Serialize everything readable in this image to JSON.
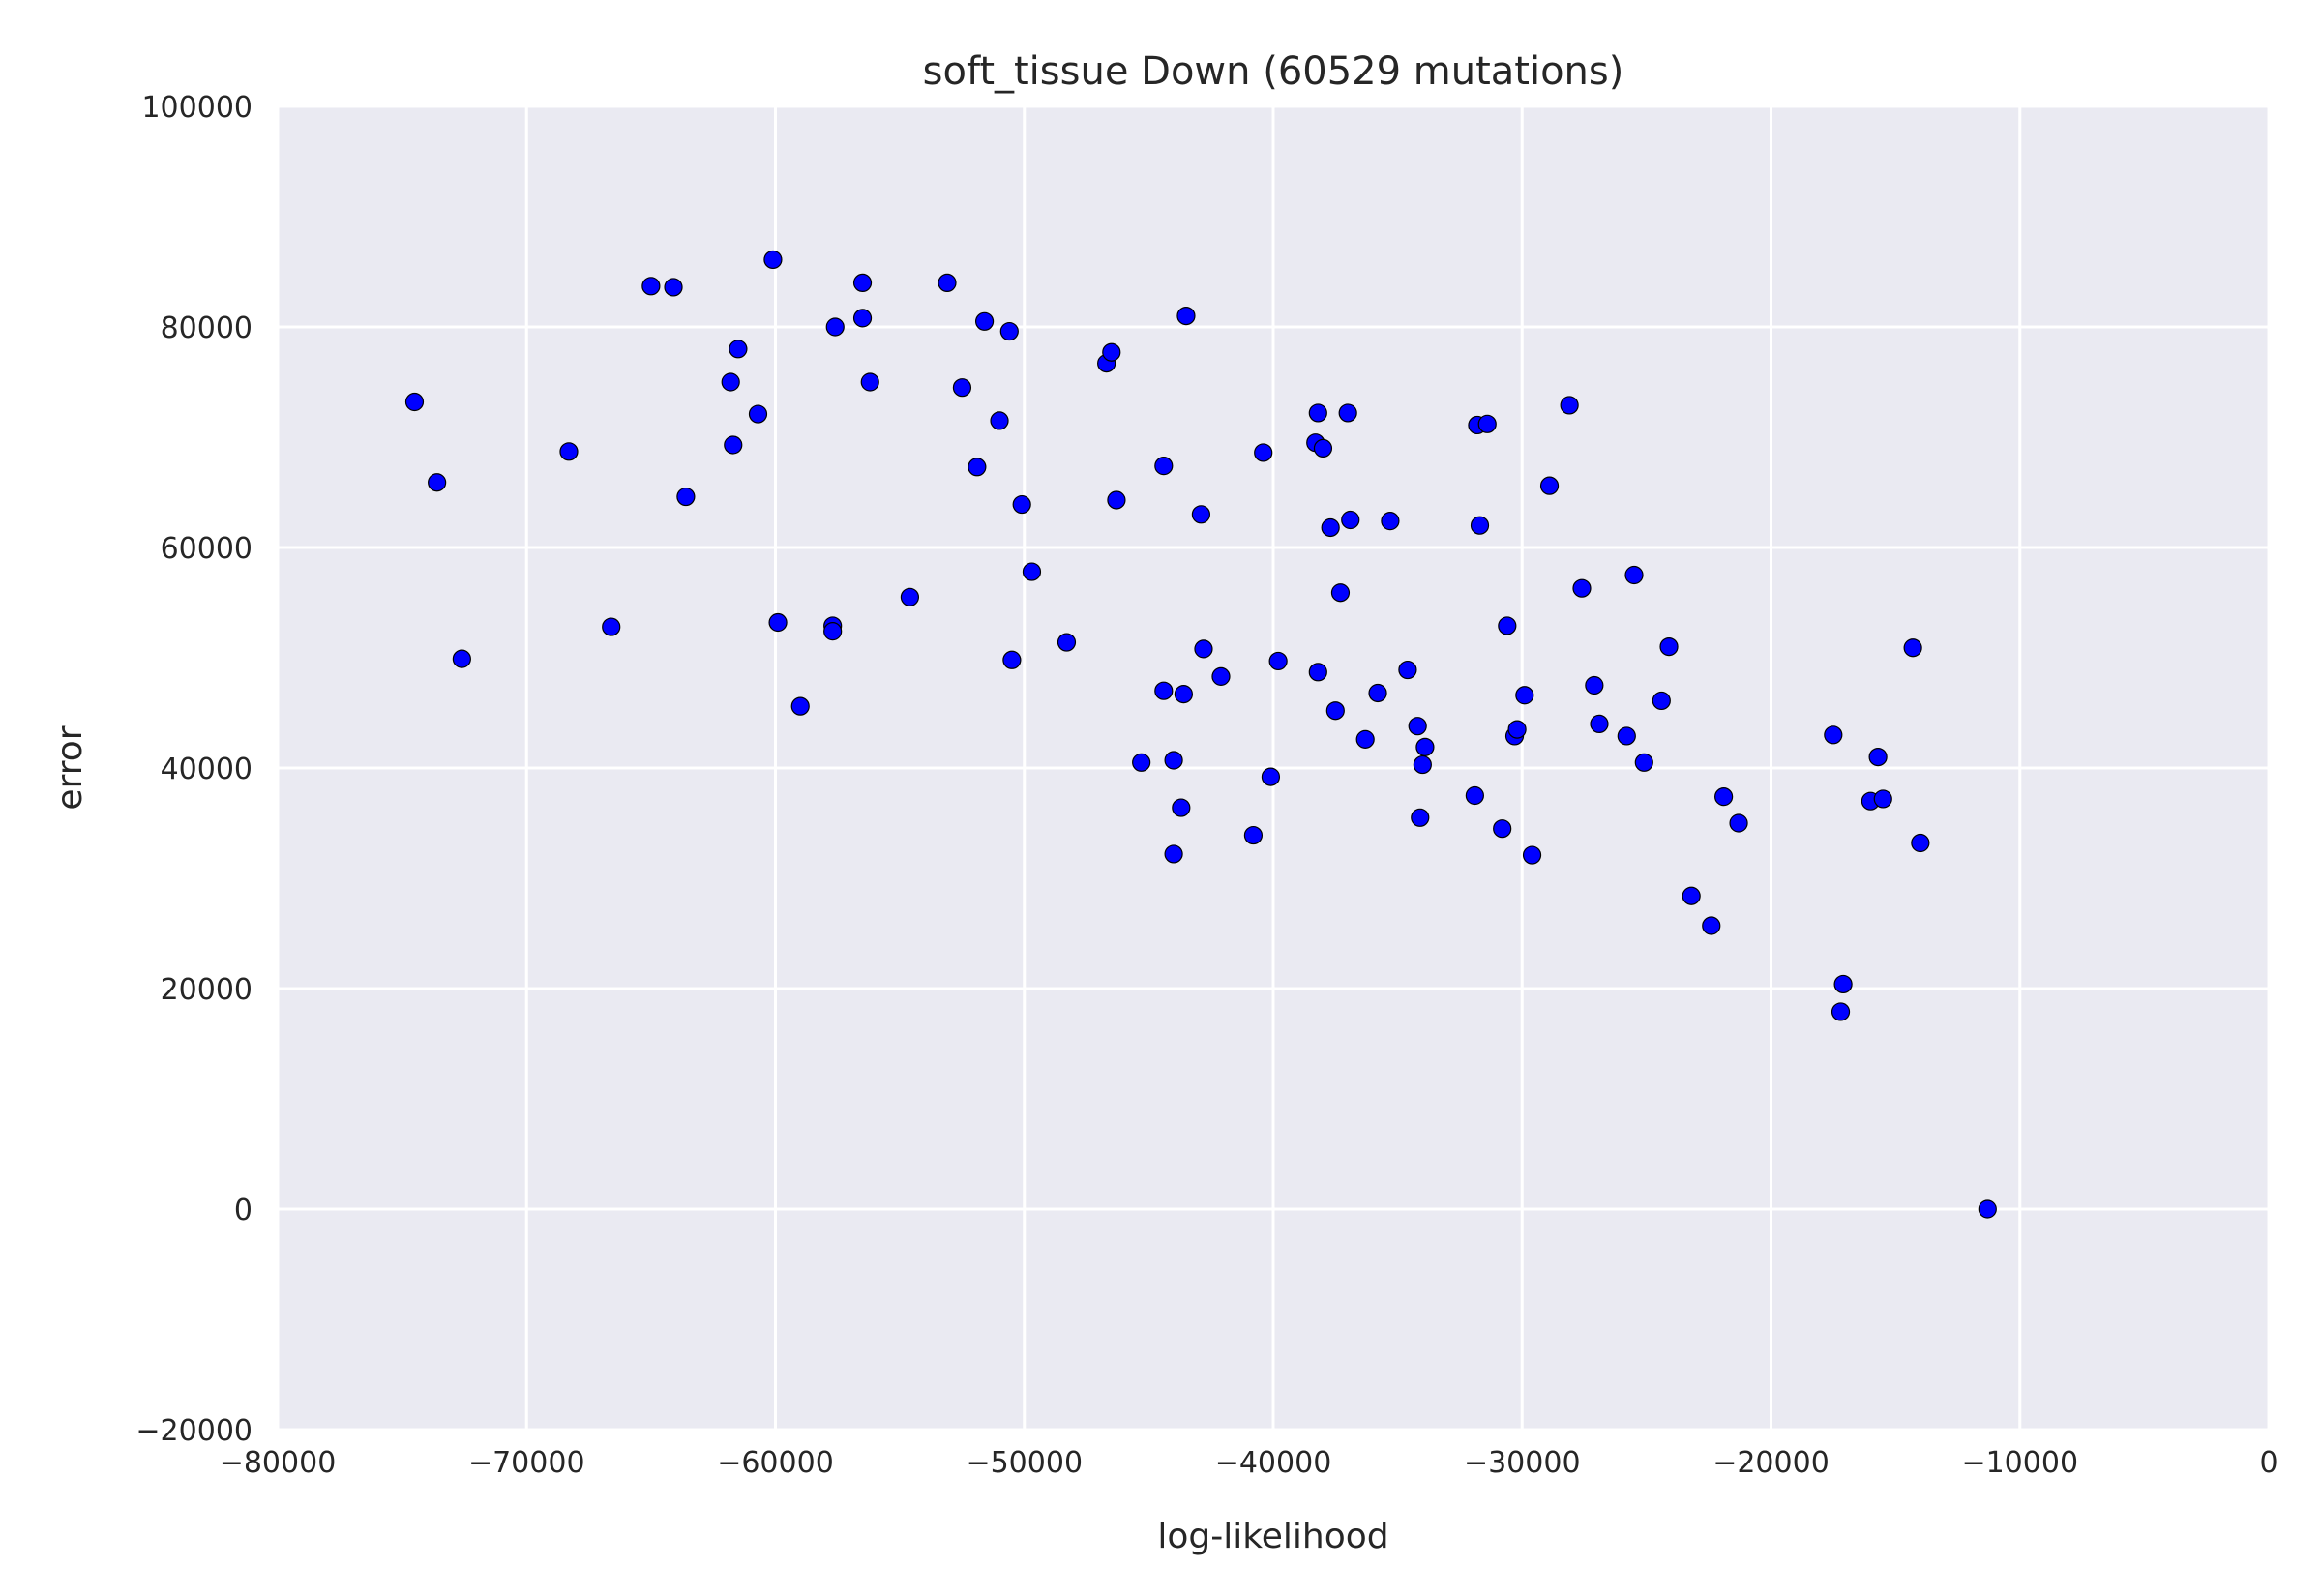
{
  "chart_data": {
    "type": "scatter",
    "title": "soft_tissue Down (60529 mutations)",
    "xlabel": "log-likelihood",
    "ylabel": "error",
    "xlim": [
      -80000,
      0
    ],
    "ylim": [
      -20000,
      100000
    ],
    "xticks": [
      -80000,
      -70000,
      -60000,
      -50000,
      -40000,
      -30000,
      -20000,
      -10000,
      0
    ],
    "yticks": [
      -20000,
      0,
      20000,
      40000,
      60000,
      80000,
      100000
    ],
    "xtick_labels": [
      "−80000",
      "−70000",
      "−60000",
      "−50000",
      "−40000",
      "−30000",
      "−20000",
      "−10000",
      "0"
    ],
    "ytick_labels": [
      "−20000",
      "0",
      "20000",
      "40000",
      "60000",
      "80000",
      "100000"
    ],
    "grid": true,
    "colors": {
      "background": "#eaeaf2",
      "grid": "#ffffff",
      "point_fill": "#0000ff",
      "point_edge": "#000000"
    },
    "points": [
      [
        -74500,
        73200
      ],
      [
        -73600,
        65900
      ],
      [
        -72600,
        49900
      ],
      [
        -68300,
        68700
      ],
      [
        -66600,
        52800
      ],
      [
        -65000,
        83700
      ],
      [
        -64100,
        83600
      ],
      [
        -63600,
        64600
      ],
      [
        -61800,
        75000
      ],
      [
        -61700,
        69300
      ],
      [
        -61500,
        78000
      ],
      [
        -60700,
        72100
      ],
      [
        -60100,
        86100
      ],
      [
        -59900,
        53200
      ],
      [
        -59000,
        45600
      ],
      [
        -57700,
        52900
      ],
      [
        -57700,
        52400
      ],
      [
        -57600,
        80000
      ],
      [
        -56500,
        80800
      ],
      [
        -56500,
        84000
      ],
      [
        -56200,
        75000
      ],
      [
        -54600,
        55500
      ],
      [
        -53100,
        84000
      ],
      [
        -52500,
        74500
      ],
      [
        -51900,
        67300
      ],
      [
        -51600,
        80500
      ],
      [
        -51000,
        71500
      ],
      [
        -50600,
        79600
      ],
      [
        -50500,
        49800
      ],
      [
        -50100,
        63900
      ],
      [
        -49700,
        57800
      ],
      [
        -48300,
        51400
      ],
      [
        -46700,
        76700
      ],
      [
        -46500,
        77700
      ],
      [
        -46300,
        64300
      ],
      [
        -45300,
        40500
      ],
      [
        -44400,
        67400
      ],
      [
        -44400,
        47000
      ],
      [
        -44000,
        32200
      ],
      [
        -44000,
        40700
      ],
      [
        -43700,
        36400
      ],
      [
        -43600,
        46700
      ],
      [
        -43500,
        81000
      ],
      [
        -42900,
        63000
      ],
      [
        -42800,
        50800
      ],
      [
        -42100,
        48300
      ],
      [
        -40800,
        33900
      ],
      [
        -40400,
        68600
      ],
      [
        -40100,
        39200
      ],
      [
        -39800,
        49700
      ],
      [
        -38300,
        69500
      ],
      [
        -38200,
        72200
      ],
      [
        -38200,
        48700
      ],
      [
        -38000,
        69000
      ],
      [
        -37700,
        61800
      ],
      [
        -37500,
        45200
      ],
      [
        -37300,
        55900
      ],
      [
        -37000,
        72200
      ],
      [
        -36900,
        62500
      ],
      [
        -36300,
        42600
      ],
      [
        -35800,
        46800
      ],
      [
        -35300,
        62400
      ],
      [
        -34600,
        48900
      ],
      [
        -34200,
        43800
      ],
      [
        -34100,
        35500
      ],
      [
        -34000,
        40300
      ],
      [
        -33900,
        41900
      ],
      [
        -31900,
        37500
      ],
      [
        -31800,
        71100
      ],
      [
        -31700,
        62000
      ],
      [
        -31400,
        71200
      ],
      [
        -30800,
        34500
      ],
      [
        -30600,
        52900
      ],
      [
        -30300,
        42900
      ],
      [
        -30200,
        43500
      ],
      [
        -29900,
        46600
      ],
      [
        -29600,
        32100
      ],
      [
        -28900,
        65600
      ],
      [
        -28100,
        72900
      ],
      [
        -27600,
        56300
      ],
      [
        -27100,
        47500
      ],
      [
        -26900,
        44000
      ],
      [
        -25800,
        42900
      ],
      [
        -25500,
        57500
      ],
      [
        -25100,
        40500
      ],
      [
        -24400,
        46100
      ],
      [
        -24100,
        51000
      ],
      [
        -23200,
        28400
      ],
      [
        -22400,
        25700
      ],
      [
        -21900,
        37400
      ],
      [
        -21300,
        35000
      ],
      [
        -17500,
        43000
      ],
      [
        -17100,
        20400
      ],
      [
        -17200,
        17900
      ],
      [
        -16000,
        37000
      ],
      [
        -15700,
        41000
      ],
      [
        -15500,
        37200
      ],
      [
        -14300,
        50900
      ],
      [
        -14000,
        33200
      ],
      [
        -11300,
        0
      ]
    ]
  }
}
